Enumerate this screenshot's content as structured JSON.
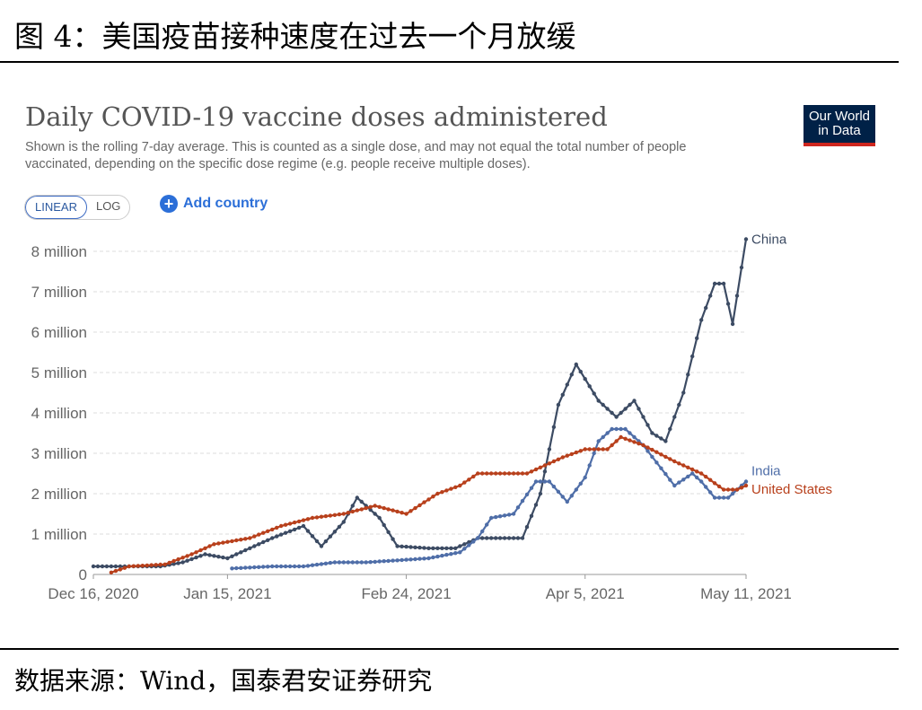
{
  "figure_caption": "图 4：美国疫苗接种速度在过去一个月放缓",
  "source_note": "数据来源：Wind，国泰君安证券研究",
  "header": {
    "logo_line1": "Our World",
    "logo_line2": "in Data",
    "scale_linear": "LINEAR",
    "scale_log": "LOG",
    "add_country": "Add country"
  },
  "colors": {
    "China": "#3c4b63",
    "India": "#4f6ea8",
    "United States": "#b8401c"
  },
  "chart_data": {
    "type": "line",
    "title": "Daily COVID-19 vaccine doses administered",
    "subtitle": "Shown is the rolling 7-day average. This is counted as a single dose, and may not equal the total number of people vaccinated, depending on the specific dose regime (e.g. people receive multiple doses).",
    "xlabel": "",
    "ylabel": "",
    "x_ticks": [
      "Dec 16, 2020",
      "Jan 15, 2021",
      "Feb 24, 2021",
      "Apr 5, 2021",
      "May 11, 2021"
    ],
    "x_tick_dates": [
      "2020-12-16",
      "2021-01-15",
      "2021-02-24",
      "2021-04-05",
      "2021-05-11"
    ],
    "y_ticks": [
      "0",
      "1 million",
      "2 million",
      "3 million",
      "4 million",
      "5 million",
      "6 million",
      "7 million",
      "8 million"
    ],
    "y_tick_values": [
      0,
      1000000,
      2000000,
      3000000,
      4000000,
      5000000,
      6000000,
      7000000,
      8000000
    ],
    "ylim": [
      0,
      8000000
    ],
    "xlim": [
      "2020-12-16",
      "2021-05-11"
    ],
    "grid": "horizontal dashed",
    "series": [
      {
        "name": "China",
        "label": "China",
        "color": "#3c4b63",
        "points": [
          [
            "2020-12-16",
            200000
          ],
          [
            "2020-12-31",
            200000
          ],
          [
            "2021-01-05",
            300000
          ],
          [
            "2021-01-10",
            500000
          ],
          [
            "2021-01-15",
            400000
          ],
          [
            "2021-01-25",
            900000
          ],
          [
            "2021-02-01",
            1200000
          ],
          [
            "2021-02-05",
            700000
          ],
          [
            "2021-02-10",
            1300000
          ],
          [
            "2021-02-13",
            1900000
          ],
          [
            "2021-02-18",
            1400000
          ],
          [
            "2021-02-22",
            700000
          ],
          [
            "2021-03-01",
            650000
          ],
          [
            "2021-03-07",
            650000
          ],
          [
            "2021-03-12",
            900000
          ],
          [
            "2021-03-22",
            900000
          ],
          [
            "2021-03-26",
            2000000
          ],
          [
            "2021-03-30",
            4200000
          ],
          [
            "2021-04-03",
            5200000
          ],
          [
            "2021-04-08",
            4300000
          ],
          [
            "2021-04-12",
            3900000
          ],
          [
            "2021-04-16",
            4300000
          ],
          [
            "2021-04-20",
            3500000
          ],
          [
            "2021-04-23",
            3300000
          ],
          [
            "2021-04-27",
            4500000
          ],
          [
            "2021-05-01",
            6300000
          ],
          [
            "2021-05-04",
            7200000
          ],
          [
            "2021-05-06",
            7200000
          ],
          [
            "2021-05-08",
            6200000
          ],
          [
            "2021-05-10",
            7600000
          ],
          [
            "2021-05-11",
            8300000
          ]
        ]
      },
      {
        "name": "India",
        "label": "India",
        "color": "#4f6ea8",
        "points": [
          [
            "2021-01-16",
            150000
          ],
          [
            "2021-01-25",
            200000
          ],
          [
            "2021-02-01",
            200000
          ],
          [
            "2021-02-08",
            300000
          ],
          [
            "2021-02-15",
            300000
          ],
          [
            "2021-02-22",
            350000
          ],
          [
            "2021-03-01",
            400000
          ],
          [
            "2021-03-08",
            550000
          ],
          [
            "2021-03-12",
            900000
          ],
          [
            "2021-03-15",
            1400000
          ],
          [
            "2021-03-20",
            1500000
          ],
          [
            "2021-03-25",
            2300000
          ],
          [
            "2021-03-28",
            2300000
          ],
          [
            "2021-04-01",
            1800000
          ],
          [
            "2021-04-05",
            2400000
          ],
          [
            "2021-04-08",
            3300000
          ],
          [
            "2021-04-11",
            3600000
          ],
          [
            "2021-04-14",
            3600000
          ],
          [
            "2021-04-18",
            3200000
          ],
          [
            "2021-04-25",
            2200000
          ],
          [
            "2021-04-29",
            2500000
          ],
          [
            "2021-05-01",
            2300000
          ],
          [
            "2021-05-04",
            1900000
          ],
          [
            "2021-05-07",
            1900000
          ],
          [
            "2021-05-11",
            2300000
          ]
        ]
      },
      {
        "name": "United States",
        "label": "United States",
        "color": "#b8401c",
        "points": [
          [
            "2020-12-20",
            50000
          ],
          [
            "2020-12-24",
            200000
          ],
          [
            "2021-01-01",
            250000
          ],
          [
            "2021-01-07",
            500000
          ],
          [
            "2021-01-12",
            750000
          ],
          [
            "2021-01-20",
            900000
          ],
          [
            "2021-01-27",
            1200000
          ],
          [
            "2021-02-03",
            1400000
          ],
          [
            "2021-02-10",
            1500000
          ],
          [
            "2021-02-17",
            1700000
          ],
          [
            "2021-02-24",
            1500000
          ],
          [
            "2021-03-03",
            2000000
          ],
          [
            "2021-03-08",
            2200000
          ],
          [
            "2021-03-12",
            2500000
          ],
          [
            "2021-03-18",
            2500000
          ],
          [
            "2021-03-23",
            2500000
          ],
          [
            "2021-03-31",
            2900000
          ],
          [
            "2021-04-05",
            3100000
          ],
          [
            "2021-04-10",
            3100000
          ],
          [
            "2021-04-13",
            3400000
          ],
          [
            "2021-04-18",
            3200000
          ],
          [
            "2021-04-25",
            2800000
          ],
          [
            "2021-05-01",
            2500000
          ],
          [
            "2021-05-06",
            2100000
          ],
          [
            "2021-05-09",
            2100000
          ],
          [
            "2021-05-11",
            2200000
          ]
        ]
      }
    ]
  }
}
